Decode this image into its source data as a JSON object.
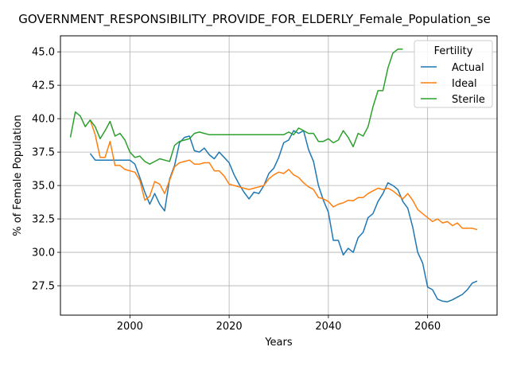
{
  "chart_data": {
    "type": "line",
    "title": "GOVERNMENT_RESPONSIBILITY_PROVIDE_FOR_ELDERLY_Female_Population_se",
    "xlabel": "Years",
    "ylabel": "% of Female Population",
    "xlim": [
      1986,
      2074
    ],
    "ylim": [
      25.3,
      46.2
    ],
    "xticks": [
      2000,
      2020,
      2040,
      2060
    ],
    "xtick_labels": [
      "2000",
      "2020",
      "2040",
      "2060"
    ],
    "yticks": [
      27.5,
      30.0,
      32.5,
      35.0,
      37.5,
      40.0,
      42.5,
      45.0
    ],
    "ytick_labels": [
      "27.5",
      "30.0",
      "32.5",
      "35.0",
      "37.5",
      "40.0",
      "42.5",
      "45.0"
    ],
    "grid": true,
    "legend": {
      "title": "Fertility",
      "position": "top-right"
    },
    "series": [
      {
        "name": "Actual",
        "color": "#1f77b4",
        "x": [
          1992,
          1993,
          1994,
          1995,
          1996,
          1997,
          1998,
          1999,
          2000,
          2001,
          2002,
          2003,
          2004,
          2005,
          2006,
          2007,
          2008,
          2009,
          2010,
          2011,
          2012,
          2013,
          2014,
          2015,
          2016,
          2017,
          2018,
          2019,
          2020,
          2021,
          2022,
          2023,
          2024,
          2025,
          2026,
          2027,
          2028,
          2029,
          2030,
          2031,
          2032,
          2033,
          2034,
          2035,
          2036,
          2037,
          2038,
          2039,
          2040,
          2041,
          2042,
          2043,
          2044,
          2045,
          2046,
          2047,
          2048,
          2049,
          2050,
          2051,
          2052,
          2053,
          2054,
          2055,
          2056,
          2057,
          2058,
          2059,
          2060,
          2061,
          2062,
          2063,
          2064,
          2065,
          2066,
          2067,
          2068,
          2069,
          2070
        ],
        "y": [
          37.4,
          36.9,
          36.9,
          36.9,
          36.9,
          36.9,
          36.9,
          36.9,
          36.9,
          36.6,
          35.6,
          34.5,
          33.6,
          34.4,
          33.6,
          33.1,
          35.5,
          36.5,
          38.2,
          38.6,
          38.7,
          37.6,
          37.5,
          37.8,
          37.3,
          37,
          37.5,
          37.1,
          36.7,
          35.8,
          35.1,
          34.5,
          34,
          34.5,
          34.4,
          35.0,
          35.9,
          36.3,
          37.1,
          38.2,
          38.4,
          39.1,
          38.9,
          39.1,
          37.7,
          36.8,
          35,
          33.9,
          33,
          30.9,
          30.9,
          29.8,
          30.3,
          30.0,
          31.1,
          31.5,
          32.6,
          32.9,
          33.8,
          34.4,
          35.2,
          35.0,
          34.7,
          33.8,
          33.3,
          31.9,
          30,
          29.2,
          27.4,
          27.2,
          26.5,
          26.35,
          26.3,
          26.45,
          26.65,
          26.85,
          27.2,
          27.7,
          27.85
        ]
      },
      {
        "name": "Ideal",
        "color": "#ff7f0e",
        "x": [
          1992,
          1993,
          1994,
          1995,
          1996,
          1997,
          1998,
          1999,
          2000,
          2001,
          2002,
          2003,
          2004,
          2005,
          2006,
          2007,
          2008,
          2009,
          2010,
          2011,
          2012,
          2013,
          2014,
          2015,
          2016,
          2017,
          2018,
          2019,
          2020,
          2021,
          2022,
          2023,
          2024,
          2025,
          2026,
          2027,
          2028,
          2029,
          2030,
          2031,
          2032,
          2033,
          2034,
          2035,
          2036,
          2037,
          2038,
          2039,
          2040,
          2041,
          2042,
          2043,
          2044,
          2045,
          2046,
          2047,
          2048,
          2049,
          2050,
          2051,
          2052,
          2053,
          2054,
          2055,
          2056,
          2057,
          2058,
          2059,
          2060,
          2061,
          2062,
          2063,
          2064,
          2065,
          2066,
          2067,
          2068,
          2069,
          2070
        ],
        "y": [
          39.9,
          38.8,
          37.1,
          37.1,
          38.3,
          36.5,
          36.5,
          36.2,
          36.1,
          36.0,
          35.4,
          33.9,
          34.2,
          35.3,
          35.1,
          34.4,
          35.4,
          36.4,
          36.7,
          36.8,
          36.9,
          36.6,
          36.6,
          36.7,
          36.7,
          36.1,
          36.1,
          35.7,
          35.1,
          35.0,
          34.9,
          34.8,
          34.7,
          34.8,
          34.9,
          35.0,
          35.5,
          35.8,
          36.0,
          35.9,
          36.2,
          35.8,
          35.6,
          35.2,
          34.9,
          34.7,
          34.1,
          34.0,
          33.8,
          33.4,
          33.6,
          33.7,
          33.9,
          33.85,
          34.1,
          34.1,
          34.4,
          34.6,
          34.8,
          34.7,
          34.8,
          34.6,
          34.3,
          34.0,
          34.4,
          33.9,
          33.2,
          32.9,
          32.6,
          32.3,
          32.5,
          32.2,
          32.3,
          32.0,
          32.2,
          31.8,
          31.8,
          31.8,
          31.7
        ]
      },
      {
        "name": "Sterile",
        "color": "#2ca02c",
        "x": [
          1988,
          1989,
          1990,
          1991,
          1992,
          1993,
          1994,
          1995,
          1996,
          1997,
          1998,
          1999,
          2000,
          2001,
          2002,
          2003,
          2004,
          2005,
          2006,
          2007,
          2008,
          2009,
          2010,
          2011,
          2012,
          2013,
          2014,
          2015,
          2016,
          2017,
          2018,
          2019,
          2020,
          2021,
          2022,
          2023,
          2024,
          2025,
          2026,
          2027,
          2028,
          2029,
          2030,
          2031,
          2032,
          2033,
          2034,
          2035,
          2036,
          2037,
          2038,
          2039,
          2040,
          2041,
          2042,
          2043,
          2044,
          2045,
          2046,
          2047,
          2048,
          2049,
          2050,
          2051,
          2052,
          2053,
          2054,
          2055
        ],
        "y": [
          38.6,
          40.5,
          40.2,
          39.4,
          39.9,
          39.4,
          38.5,
          39.1,
          39.8,
          38.7,
          38.9,
          38.4,
          37.5,
          37.1,
          37.2,
          36.8,
          36.6,
          36.8,
          37.0,
          36.9,
          36.8,
          38.0,
          38.3,
          38.4,
          38.5,
          38.9,
          39.0,
          38.9,
          38.8,
          38.8,
          38.8,
          38.8,
          38.8,
          38.8,
          38.8,
          38.8,
          38.8,
          38.8,
          38.8,
          38.8,
          38.8,
          38.8,
          38.8,
          38.8,
          39.0,
          38.8,
          39.3,
          39.1,
          38.9,
          38.9,
          38.3,
          38.3,
          38.5,
          38.2,
          38.4,
          39.1,
          38.6,
          37.9,
          38.9,
          38.7,
          39.4,
          40.9,
          42.1,
          42.1,
          43.8,
          44.9,
          45.2,
          45.2
        ]
      }
    ]
  }
}
